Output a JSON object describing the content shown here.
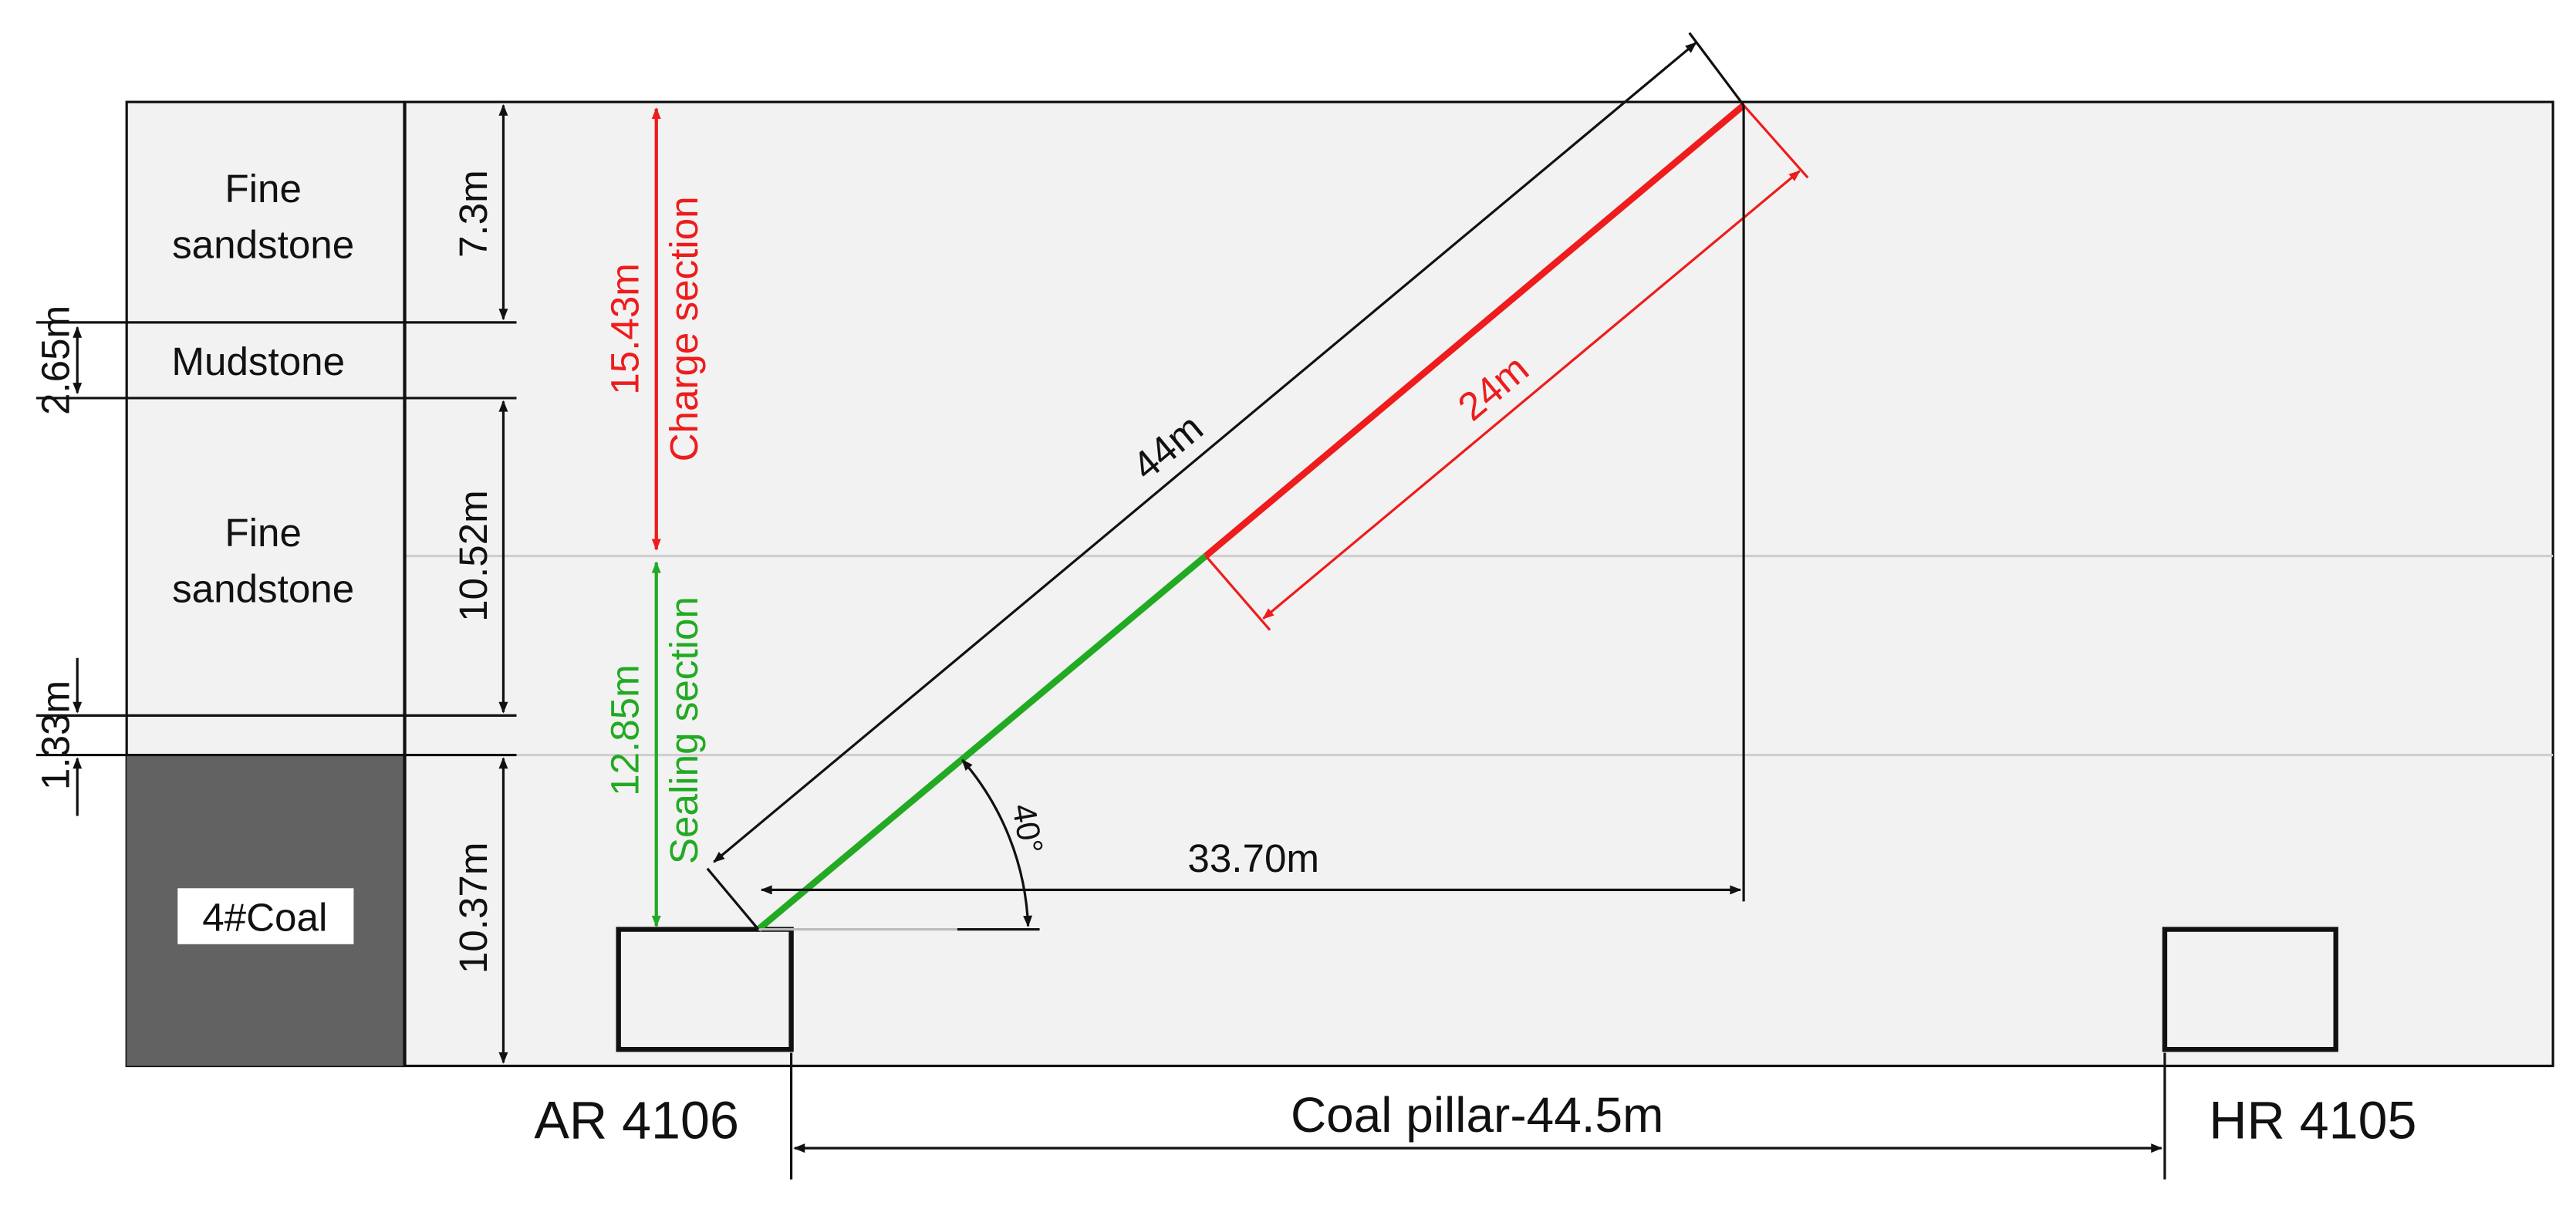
{
  "strata": [
    {
      "name": "Fine",
      "name2": "sandstone",
      "thickness": "7.3m"
    },
    {
      "name": "Mudstone",
      "thickness": "2.65m"
    },
    {
      "name": "Fine",
      "name2": "sandstone",
      "thickness": "10.52m"
    },
    {
      "name": "",
      "thickness": "1.33m"
    },
    {
      "name": "4#Coal",
      "thickness": "10.37m"
    }
  ],
  "borehole": {
    "length": "44m",
    "charge_length": "24m",
    "horizontal": "33.70m",
    "angle": "40°",
    "charge_label": "15.43m",
    "charge_section": "Charge section",
    "sealing_label": "12.85m",
    "sealing_section": "Sealing section"
  },
  "roadways": {
    "left": "AR 4106",
    "right": "HR 4105",
    "pillar": "Coal pillar-44.5m"
  },
  "colors": {
    "charge": "#ee1c1c",
    "sealing": "#22aa22",
    "coal": "#626262",
    "background": "#f2f2f2",
    "line": "#111111"
  }
}
